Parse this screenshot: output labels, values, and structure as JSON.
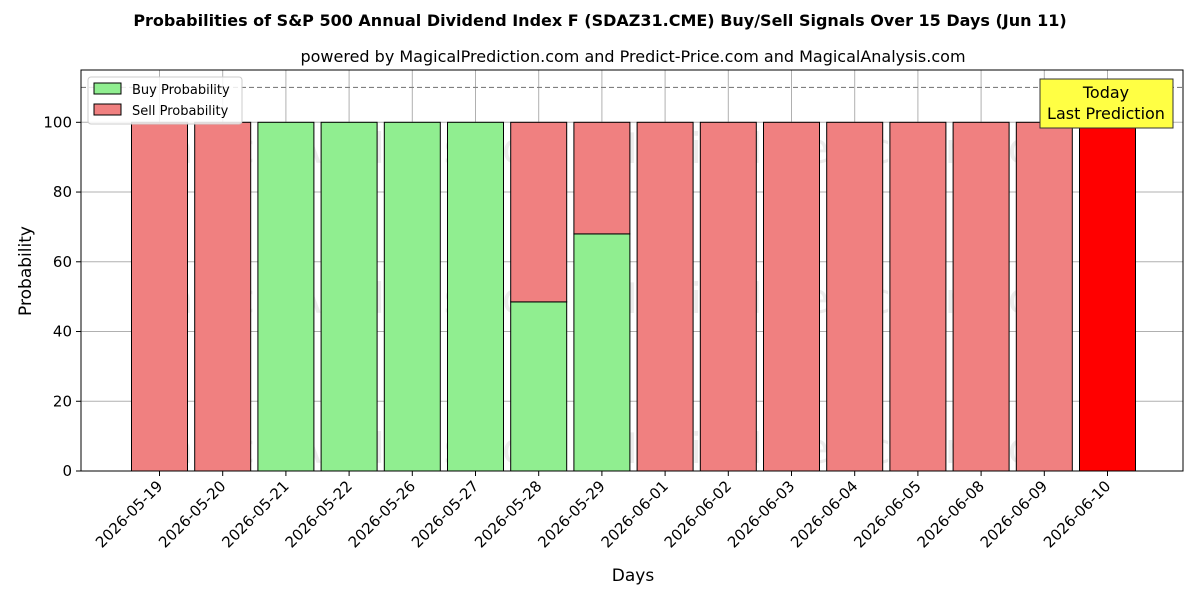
{
  "chart_data": {
    "type": "bar",
    "stacked": true,
    "title": "Probabilities of S&P 500 Annual Dividend Index F (SDAZ31.CME) Buy/Sell Signals Over 15 Days (Jun 11)",
    "subtitle": "powered by MagicalPrediction.com and Predict-Price.com and MagicalAnalysis.com",
    "xlabel": "Days",
    "ylabel": "Probability",
    "ylim": [
      0,
      115
    ],
    "yticks": [
      0,
      20,
      40,
      60,
      80,
      100
    ],
    "grid": true,
    "legend_position": "top-left",
    "categories": [
      "2026-05-19",
      "2026-05-20",
      "2026-05-21",
      "2026-05-22",
      "2026-05-26",
      "2026-05-27",
      "2026-05-28",
      "2026-05-29",
      "2026-06-01",
      "2026-06-02",
      "2026-06-03",
      "2026-06-04",
      "2026-06-05",
      "2026-06-08",
      "2026-06-09",
      "2026-06-10"
    ],
    "series": [
      {
        "name": "Buy Probability",
        "color": "#90ee90",
        "values": [
          0,
          0,
          100,
          100,
          100,
          100,
          48.5,
          68,
          0,
          0,
          0,
          0,
          0,
          0,
          0,
          0
        ]
      },
      {
        "name": "Sell Probability",
        "color": "#f08080",
        "values": [
          100,
          100,
          0,
          0,
          0,
          0,
          51.5,
          32,
          100,
          100,
          100,
          100,
          100,
          100,
          100,
          100
        ]
      }
    ],
    "highlight": {
      "index": 15,
      "color": "#ff0000"
    },
    "reference_line": {
      "y": 110,
      "style": "dashed",
      "color": "#808080"
    },
    "annotation": {
      "lines": [
        "Today",
        "Last Prediction"
      ],
      "background": "#ffff44"
    },
    "watermarks": [
      "MagicalAnalysis.com",
      "MagicalPrediction.com"
    ]
  }
}
